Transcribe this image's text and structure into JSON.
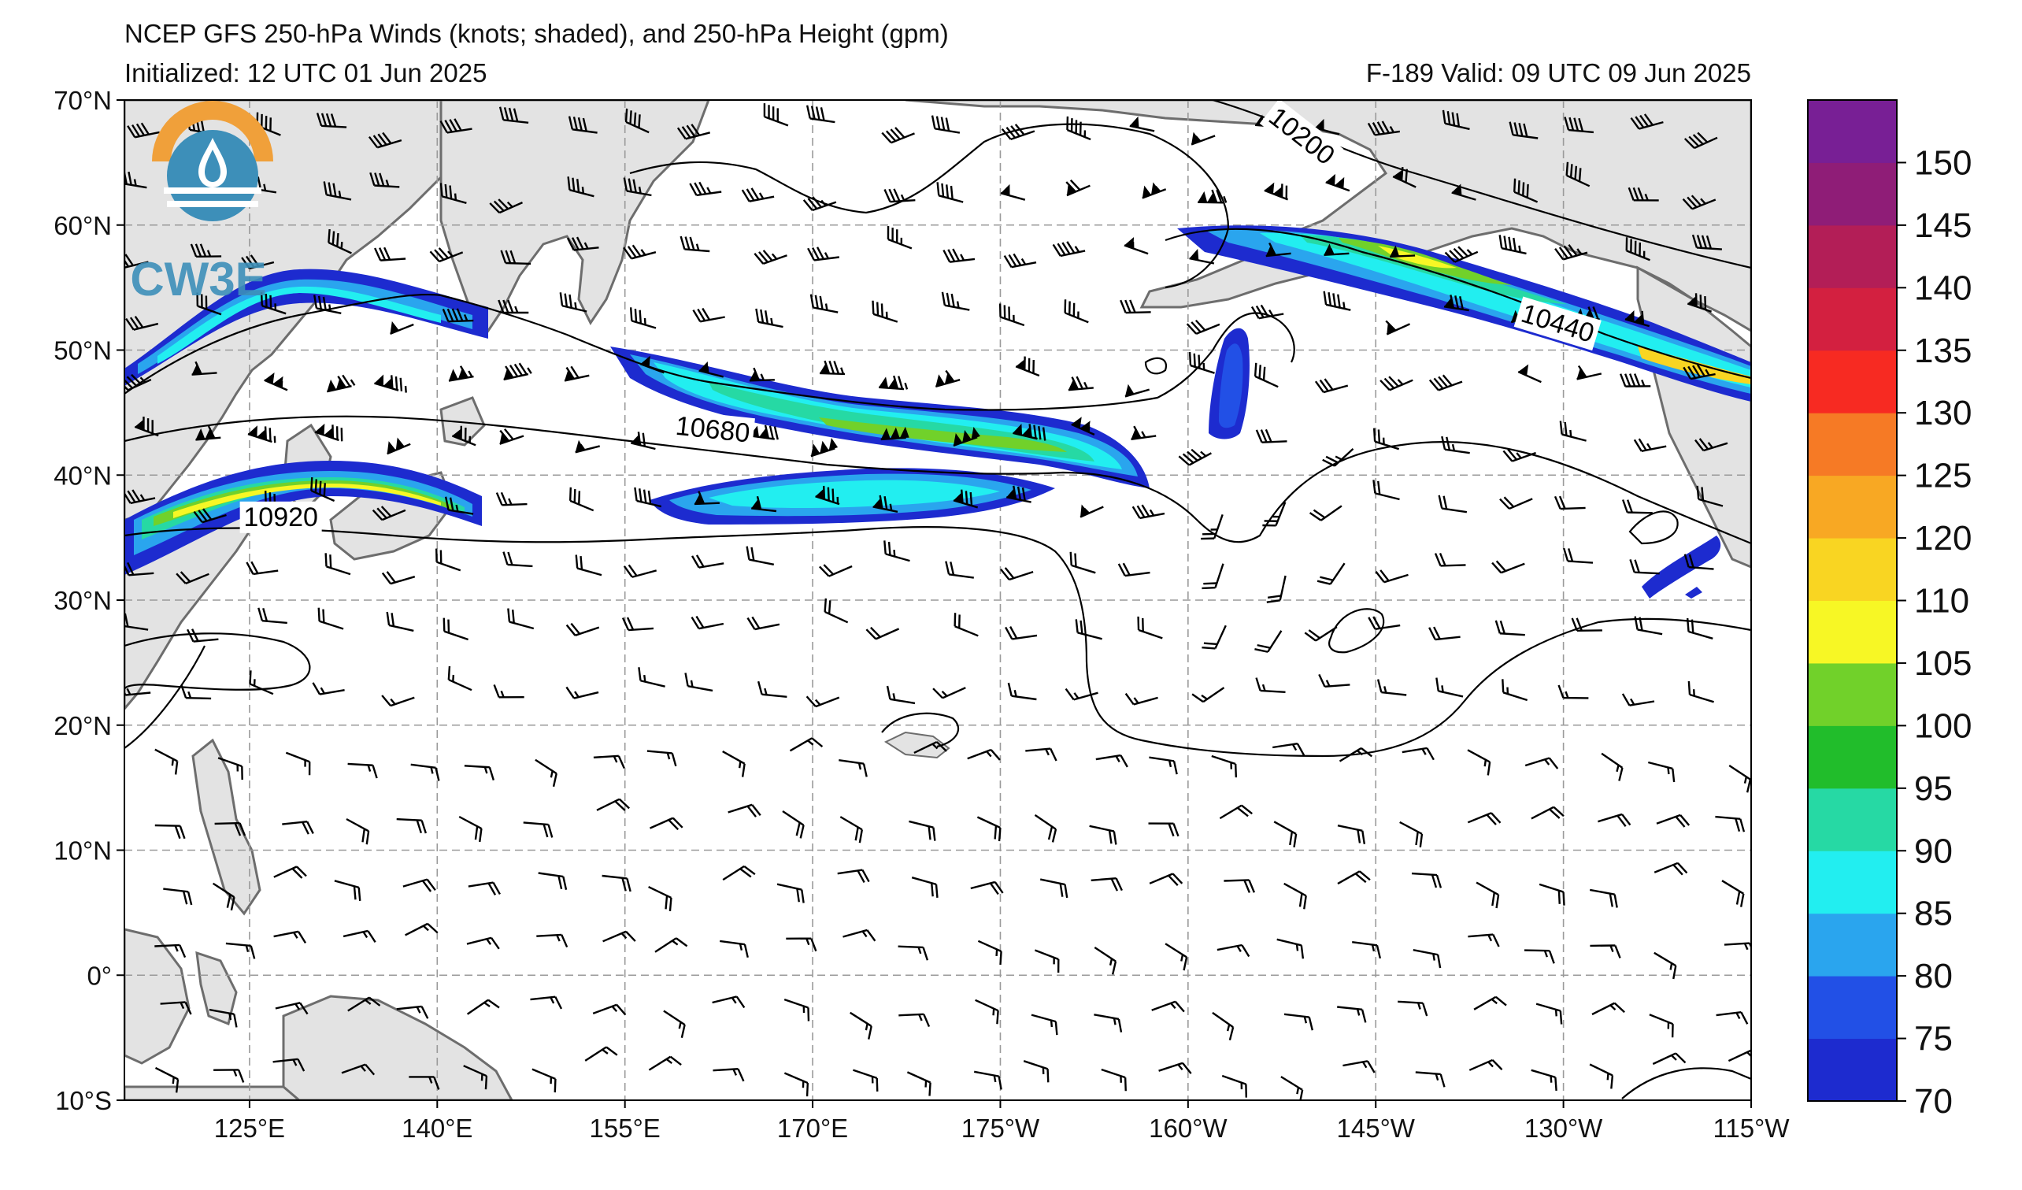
{
  "header": {
    "title": "NCEP GFS 250-hPa Winds (knots; shaded), and 250-hPa Height (gpm)",
    "initialized": "Initialized: 12 UTC 01 Jun 2025",
    "valid": "F-189  Valid: 09 UTC 09 Jun 2025"
  },
  "logo": {
    "text": "CW3E",
    "icon": "water-drop-logo-icon"
  },
  "map": {
    "projection": "equidistant-cylindrical",
    "lon_range": [
      115,
      245
    ],
    "lat_range": [
      -10,
      70
    ],
    "lon_ticks": [
      {
        "lon": 125,
        "label": "125°E"
      },
      {
        "lon": 140,
        "label": "140°E"
      },
      {
        "lon": 155,
        "label": "155°E"
      },
      {
        "lon": 170,
        "label": "170°E"
      },
      {
        "lon": 185,
        "label": "175°W"
      },
      {
        "lon": 200,
        "label": "160°W"
      },
      {
        "lon": 215,
        "label": "145°W"
      },
      {
        "lon": 230,
        "label": "130°W"
      },
      {
        "lon": 245,
        "label": "115°W"
      }
    ],
    "lat_ticks": [
      {
        "lat": 70,
        "label": "70°N"
      },
      {
        "lat": 60,
        "label": "60°N"
      },
      {
        "lat": 50,
        "label": "50°N"
      },
      {
        "lat": 40,
        "label": "40°N"
      },
      {
        "lat": 30,
        "label": "30°N"
      },
      {
        "lat": 20,
        "label": "20°N"
      },
      {
        "lat": 10,
        "label": "10°N"
      },
      {
        "lat": 0,
        "label": "0°"
      },
      {
        "lat": -10,
        "label": "10°S"
      }
    ],
    "contour_labels": [
      {
        "text": "10200",
        "lon": 209,
        "lat": 67,
        "angle": 38
      },
      {
        "text": "10440",
        "lon": 229.5,
        "lat": 52,
        "angle": 17
      },
      {
        "text": "10680",
        "lon": 162,
        "lat": 43.5,
        "angle": 6
      },
      {
        "text": "10920",
        "lon": 127.5,
        "lat": 36.5,
        "angle": 0
      }
    ],
    "colors": {
      "land": "#e3e3e3",
      "coast": "#6d6d6d",
      "grid": "#9a9a9a",
      "contour": "#000000"
    }
  },
  "colorbar": {
    "ticks": [
      "70",
      "75",
      "80",
      "85",
      "90",
      "95",
      "100",
      "105",
      "110",
      "120",
      "125",
      "130",
      "135",
      "140",
      "145",
      "150"
    ],
    "colors": [
      "#1d2bcf",
      "#2250e6",
      "#2aa5ee",
      "#22eef0",
      "#26d9a4",
      "#21bd2b",
      "#71d12a",
      "#f7f725",
      "#f9d522",
      "#f8a823",
      "#f67a25",
      "#f72a22",
      "#d32040",
      "#b31e57",
      "#8f1d77",
      "#781f95"
    ]
  }
}
